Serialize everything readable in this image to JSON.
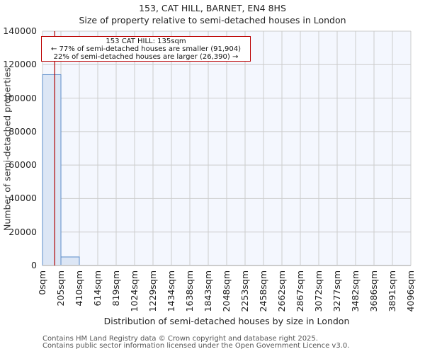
{
  "title_line1": "153, CAT HILL, BARNET, EN4 8HS",
  "title_line2": "Size of property relative to semi-detached houses in London",
  "annotation": {
    "line1": "153 CAT HILL: 135sqm",
    "line2": "← 77% of semi-detached houses are smaller (91,904)",
    "line3": "22% of semi-detached houses are larger (26,390) →"
  },
  "footer": {
    "line1": "Contains HM Land Registry data © Crown copyright and database right 2025.",
    "line2": "Contains public sector information licensed under the Open Government Licence v3.0."
  },
  "colors": {
    "bar_fill": "#dce6f5",
    "bar_edge": "#5b8cc9",
    "marker": "#b00000",
    "plot_bg": "#f4f7fe",
    "grid": "#cccccc"
  },
  "chart_data": {
    "type": "bar",
    "title": "153, CAT HILL, BARNET, EN4 8HS — Size of property relative to semi-detached houses in London",
    "xlabel": "Distribution of semi-detached houses by size in London",
    "ylabel": "Number of semi-detached properties",
    "categories": [
      "0sqm",
      "205sqm",
      "410sqm",
      "614sqm",
      "819sqm",
      "1024sqm",
      "1229sqm",
      "1434sqm",
      "1638sqm",
      "1843sqm",
      "2048sqm",
      "2253sqm",
      "2458sqm",
      "2662sqm",
      "2867sqm",
      "3072sqm",
      "3277sqm",
      "3482sqm",
      "3686sqm",
      "3891sqm",
      "4096sqm"
    ],
    "values": [
      114000,
      5100,
      0,
      0,
      0,
      0,
      0,
      0,
      0,
      0,
      0,
      0,
      0,
      0,
      0,
      0,
      0,
      0,
      0,
      0
    ],
    "yticks": [
      "0",
      "20000",
      "40000",
      "60000",
      "80000",
      "100000",
      "120000",
      "140000"
    ],
    "ylim": [
      0,
      140000
    ],
    "marker_value_sqm": 135,
    "grid": true
  }
}
